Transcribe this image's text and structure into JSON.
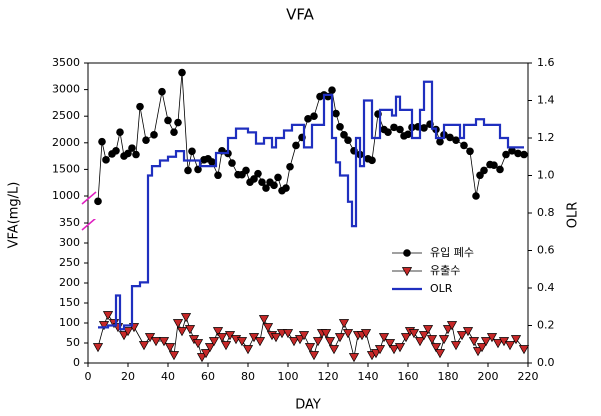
{
  "chart_data": {
    "type": "line",
    "title": "VFA",
    "xlabel": "DAY",
    "ylabel": "VFA(mg/L)",
    "y2label": "OLR",
    "xlim": [
      0,
      220
    ],
    "xticks": [
      0,
      20,
      40,
      60,
      80,
      100,
      120,
      140,
      160,
      180,
      200,
      220
    ],
    "ylim": [
      0,
      3500
    ],
    "y_break": [
      350,
      1000
    ],
    "yticks": [
      0,
      50,
      100,
      150,
      200,
      250,
      300,
      350,
      1000,
      1500,
      2000,
      2500,
      3000,
      3500
    ],
    "y2lim": [
      0,
      1.6
    ],
    "y2ticks": [
      {
        "value": 0,
        "label": "0.0"
      },
      0.2,
      0.4,
      0.6,
      0.8,
      {
        "value": 1,
        "label": "1.0"
      },
      1.2,
      1.4,
      1.6
    ],
    "series": [
      {
        "name": "유입 폐수",
        "color": "#000000",
        "marker": "circle",
        "x": [
          5,
          7,
          9,
          12,
          14,
          16,
          18,
          20,
          22,
          24,
          26,
          29,
          33,
          37,
          40,
          43,
          45,
          47,
          50,
          52,
          55,
          58,
          60,
          62,
          65,
          67,
          70,
          72,
          75,
          77,
          79,
          81,
          83,
          85,
          87,
          89,
          91,
          93,
          95,
          97,
          99,
          101,
          104,
          107,
          110,
          113,
          116,
          118,
          120,
          122,
          124,
          126,
          128,
          130,
          133,
          136,
          140,
          142,
          145,
          148,
          150,
          153,
          156,
          158,
          160,
          162,
          165,
          168,
          171,
          174,
          176,
          178,
          181,
          184,
          188,
          191,
          194,
          196,
          198,
          201,
          203,
          206,
          209,
          212,
          215,
          218
        ],
        "values": [
          900,
          2020,
          1680,
          1790,
          1850,
          2200,
          1750,
          1800,
          1900,
          1780,
          2680,
          2050,
          2150,
          2960,
          2420,
          2200,
          2380,
          3320,
          1480,
          1840,
          1500,
          1680,
          1700,
          1640,
          1390,
          1850,
          1800,
          1620,
          1400,
          1400,
          1480,
          1260,
          1320,
          1420,
          1260,
          1150,
          1260,
          1200,
          1350,
          1100,
          1150,
          1550,
          1950,
          2100,
          2450,
          2500,
          2870,
          2900,
          2870,
          2990,
          2550,
          2300,
          2150,
          2050,
          1850,
          1780,
          1700,
          1670,
          2540,
          2250,
          2200,
          2290,
          2250,
          2130,
          2160,
          2290,
          2300,
          2280,
          2350,
          2250,
          2020,
          2150,
          2100,
          2050,
          1950,
          1840,
          1000,
          1390,
          1480,
          1590,
          1580,
          1500,
          1780,
          1850,
          1800,
          1780
        ]
      },
      {
        "name": "유출수",
        "color": "#c62828",
        "marker": "triangle",
        "x": [
          5,
          8,
          10,
          13,
          15,
          18,
          20,
          23,
          28,
          31,
          34,
          38,
          41,
          43,
          45,
          47,
          49,
          51,
          53,
          55,
          57,
          59,
          61,
          63,
          65,
          67,
          69,
          71,
          74,
          77,
          80,
          83,
          86,
          88,
          90,
          92,
          94,
          97,
          100,
          103,
          106,
          108,
          111,
          113,
          115,
          117,
          119,
          121,
          123,
          126,
          128,
          130,
          133,
          135,
          137,
          139,
          142,
          144,
          146,
          148,
          151,
          153,
          156,
          159,
          161,
          163,
          166,
          168,
          170,
          172,
          174,
          176,
          178,
          180,
          182,
          184,
          187,
          190,
          193,
          195,
          197,
          199,
          202,
          205,
          208,
          211,
          214,
          218
        ],
        "values": [
          40,
          95,
          120,
          100,
          90,
          70,
          80,
          90,
          45,
          65,
          55,
          55,
          40,
          20,
          100,
          80,
          115,
          85,
          60,
          50,
          15,
          25,
          40,
          55,
          80,
          65,
          45,
          70,
          60,
          55,
          35,
          65,
          55,
          110,
          90,
          70,
          65,
          75,
          75,
          55,
          60,
          70,
          40,
          20,
          55,
          75,
          75,
          55,
          35,
          65,
          100,
          75,
          15,
          70,
          70,
          75,
          20,
          25,
          35,
          65,
          50,
          35,
          40,
          65,
          80,
          75,
          55,
          70,
          85,
          60,
          40,
          25,
          60,
          85,
          95,
          45,
          70,
          80,
          55,
          30,
          40,
          55,
          65,
          50,
          55,
          45,
          60,
          35
        ]
      },
      {
        "name": "OLR",
        "color": "#1f2fbf",
        "axis": "y2",
        "marker": "none",
        "x": [
          5,
          10,
          10,
          14,
          14,
          16,
          16,
          18,
          18,
          22,
          22,
          26,
          26,
          30,
          30,
          32,
          32,
          36,
          36,
          40,
          40,
          44,
          44,
          48,
          48,
          56,
          56,
          64,
          64,
          70,
          70,
          74,
          74,
          80,
          80,
          84,
          84,
          88,
          88,
          92,
          92,
          94,
          94,
          98,
          98,
          102,
          102,
          108,
          108,
          112,
          112,
          118,
          118,
          122,
          122,
          124,
          124,
          126,
          126,
          130,
          130,
          132,
          132,
          134,
          134,
          136,
          136,
          138,
          138,
          142,
          142,
          146,
          146,
          152,
          152,
          154,
          154,
          156,
          156,
          162,
          162,
          166,
          166,
          168,
          168,
          172,
          172,
          174,
          174,
          178,
          178,
          186,
          186,
          188,
          188,
          194,
          194,
          198,
          198,
          206,
          206,
          210,
          210,
          218
        ],
        "values": [
          0.19,
          0.19,
          0.2,
          0.2,
          0.36,
          0.36,
          0.18,
          0.18,
          0.2,
          0.2,
          0.41,
          0.41,
          0.43,
          0.43,
          1.0,
          1.0,
          1.05,
          1.05,
          1.08,
          1.08,
          1.1,
          1.1,
          1.13,
          1.13,
          1.08,
          1.08,
          1.05,
          1.05,
          1.12,
          1.12,
          1.2,
          1.2,
          1.25,
          1.25,
          1.23,
          1.23,
          1.17,
          1.17,
          1.2,
          1.2,
          1.15,
          1.15,
          1.2,
          1.2,
          1.24,
          1.24,
          1.27,
          1.27,
          1.15,
          1.15,
          1.27,
          1.27,
          1.43,
          1.43,
          1.2,
          1.2,
          1.07,
          1.07,
          1.0,
          1.0,
          0.86,
          0.86,
          0.73,
          0.73,
          1.2,
          1.2,
          1.05,
          1.05,
          1.4,
          1.4,
          1.2,
          1.2,
          1.35,
          1.35,
          1.32,
          1.32,
          1.42,
          1.42,
          1.35,
          1.35,
          1.2,
          1.2,
          1.35,
          1.35,
          1.5,
          1.5,
          1.25,
          1.25,
          1.2,
          1.2,
          1.27,
          1.27,
          1.2,
          1.2,
          1.27,
          1.27,
          1.3,
          1.3,
          1.27,
          1.27,
          1.2,
          1.2,
          1.15,
          1.15
        ]
      }
    ]
  }
}
